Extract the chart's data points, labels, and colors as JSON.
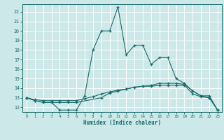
{
  "xlabel": "Humidex (Indice chaleur)",
  "bg_color": "#cce8e8",
  "grid_color": "#ffffff",
  "line_color": "#1a6b6b",
  "xlim": [
    -0.5,
    23.5
  ],
  "ylim": [
    11.5,
    22.8
  ],
  "yticks": [
    12,
    13,
    14,
    15,
    16,
    17,
    18,
    19,
    20,
    21,
    22
  ],
  "xticks": [
    0,
    1,
    2,
    3,
    4,
    5,
    6,
    7,
    8,
    9,
    10,
    11,
    12,
    13,
    14,
    15,
    16,
    17,
    18,
    19,
    20,
    21,
    22,
    23
  ],
  "line1": {
    "x": [
      0,
      1,
      2,
      3,
      4,
      5,
      6,
      7,
      8,
      9,
      10,
      11,
      12,
      13,
      14,
      15,
      16,
      17,
      18,
      19,
      20,
      21,
      22,
      23
    ],
    "y": [
      13.0,
      12.7,
      12.5,
      12.5,
      11.7,
      11.7,
      11.7,
      13.2,
      18.0,
      20.0,
      20.0,
      22.5,
      17.5,
      18.5,
      18.5,
      16.5,
      17.2,
      17.2,
      15.0,
      14.5,
      13.7,
      13.2,
      13.2,
      11.7
    ]
  },
  "line2": {
    "x": [
      0,
      1,
      2,
      3,
      4,
      5,
      6,
      9,
      10,
      11,
      12,
      13,
      14,
      15,
      16,
      17,
      18,
      19,
      20,
      21,
      22,
      23
    ],
    "y": [
      13.0,
      12.7,
      12.5,
      12.5,
      12.5,
      12.5,
      12.5,
      13.0,
      13.5,
      13.7,
      13.9,
      14.1,
      14.2,
      14.3,
      14.5,
      14.5,
      14.5,
      14.4,
      13.7,
      13.2,
      13.0,
      11.7
    ]
  },
  "line3": {
    "x": [
      0,
      1,
      2,
      3,
      4,
      5,
      6,
      7,
      8,
      9,
      10,
      11,
      12,
      13,
      14,
      15,
      16,
      17,
      18,
      19,
      20,
      21,
      22,
      23
    ],
    "y": [
      13.0,
      12.8,
      12.7,
      12.7,
      12.7,
      12.7,
      12.7,
      12.9,
      13.1,
      13.4,
      13.6,
      13.8,
      13.9,
      14.1,
      14.2,
      14.2,
      14.3,
      14.3,
      14.3,
      14.3,
      13.4,
      13.1,
      13.0,
      11.7
    ]
  }
}
